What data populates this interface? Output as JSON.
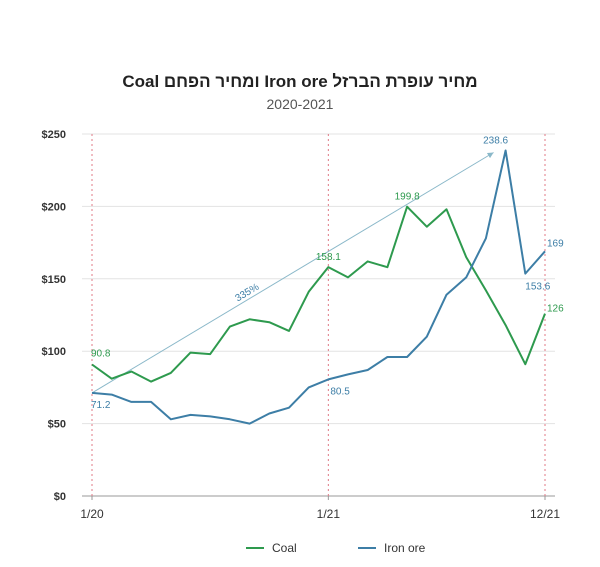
{
  "chart_data": {
    "type": "line",
    "title": "מחיר עופרת הברזל Iron ore ומחיר הפחם Coal",
    "subtitle": "2020-2021",
    "xlabel": "",
    "ylabel": "",
    "x_tick_labels": [
      "1/20",
      "1/21",
      "12/21"
    ],
    "y_ticks": [
      "$0",
      "$50",
      "$100",
      "$150",
      "$200",
      "$250"
    ],
    "ylim": [
      0,
      250
    ],
    "num_points": 24,
    "grid": "horizontal",
    "legend_position": "bottom",
    "vertical_markers_at_point_index": [
      0,
      12,
      23
    ],
    "series": [
      {
        "name": "Coal",
        "color": "#2e9a4e",
        "values": [
          90.8,
          81,
          86,
          79,
          85,
          99,
          98,
          117,
          122,
          120,
          114,
          141,
          158.1,
          151,
          162,
          158,
          199.8,
          186,
          198,
          165,
          142,
          118,
          91,
          126
        ],
        "labels": [
          {
            "index": 0,
            "text": "90.8"
          },
          {
            "index": 12,
            "text": "158.1"
          },
          {
            "index": 16,
            "text": "199.8"
          },
          {
            "index": 23,
            "text": "126"
          }
        ]
      },
      {
        "name": "Iron ore",
        "color": "#3d7ea6",
        "values": [
          71.2,
          70,
          65,
          65,
          53,
          56,
          55,
          53,
          50,
          57,
          61,
          75,
          80.5,
          84,
          87,
          96,
          96,
          110,
          139,
          151,
          178,
          238.6,
          153.6,
          169
        ],
        "labels": [
          {
            "index": 0,
            "text": "71.2"
          },
          {
            "index": 12,
            "text": "80.5"
          },
          {
            "index": 21,
            "text": "238.6"
          },
          {
            "index": 22,
            "text": "153.6"
          },
          {
            "index": 23,
            "text": "169"
          }
        ]
      }
    ],
    "annotation": {
      "text": "335%",
      "from": {
        "index": 0,
        "value": 71.2
      },
      "to": {
        "index": 21,
        "value": 238.6
      }
    }
  }
}
